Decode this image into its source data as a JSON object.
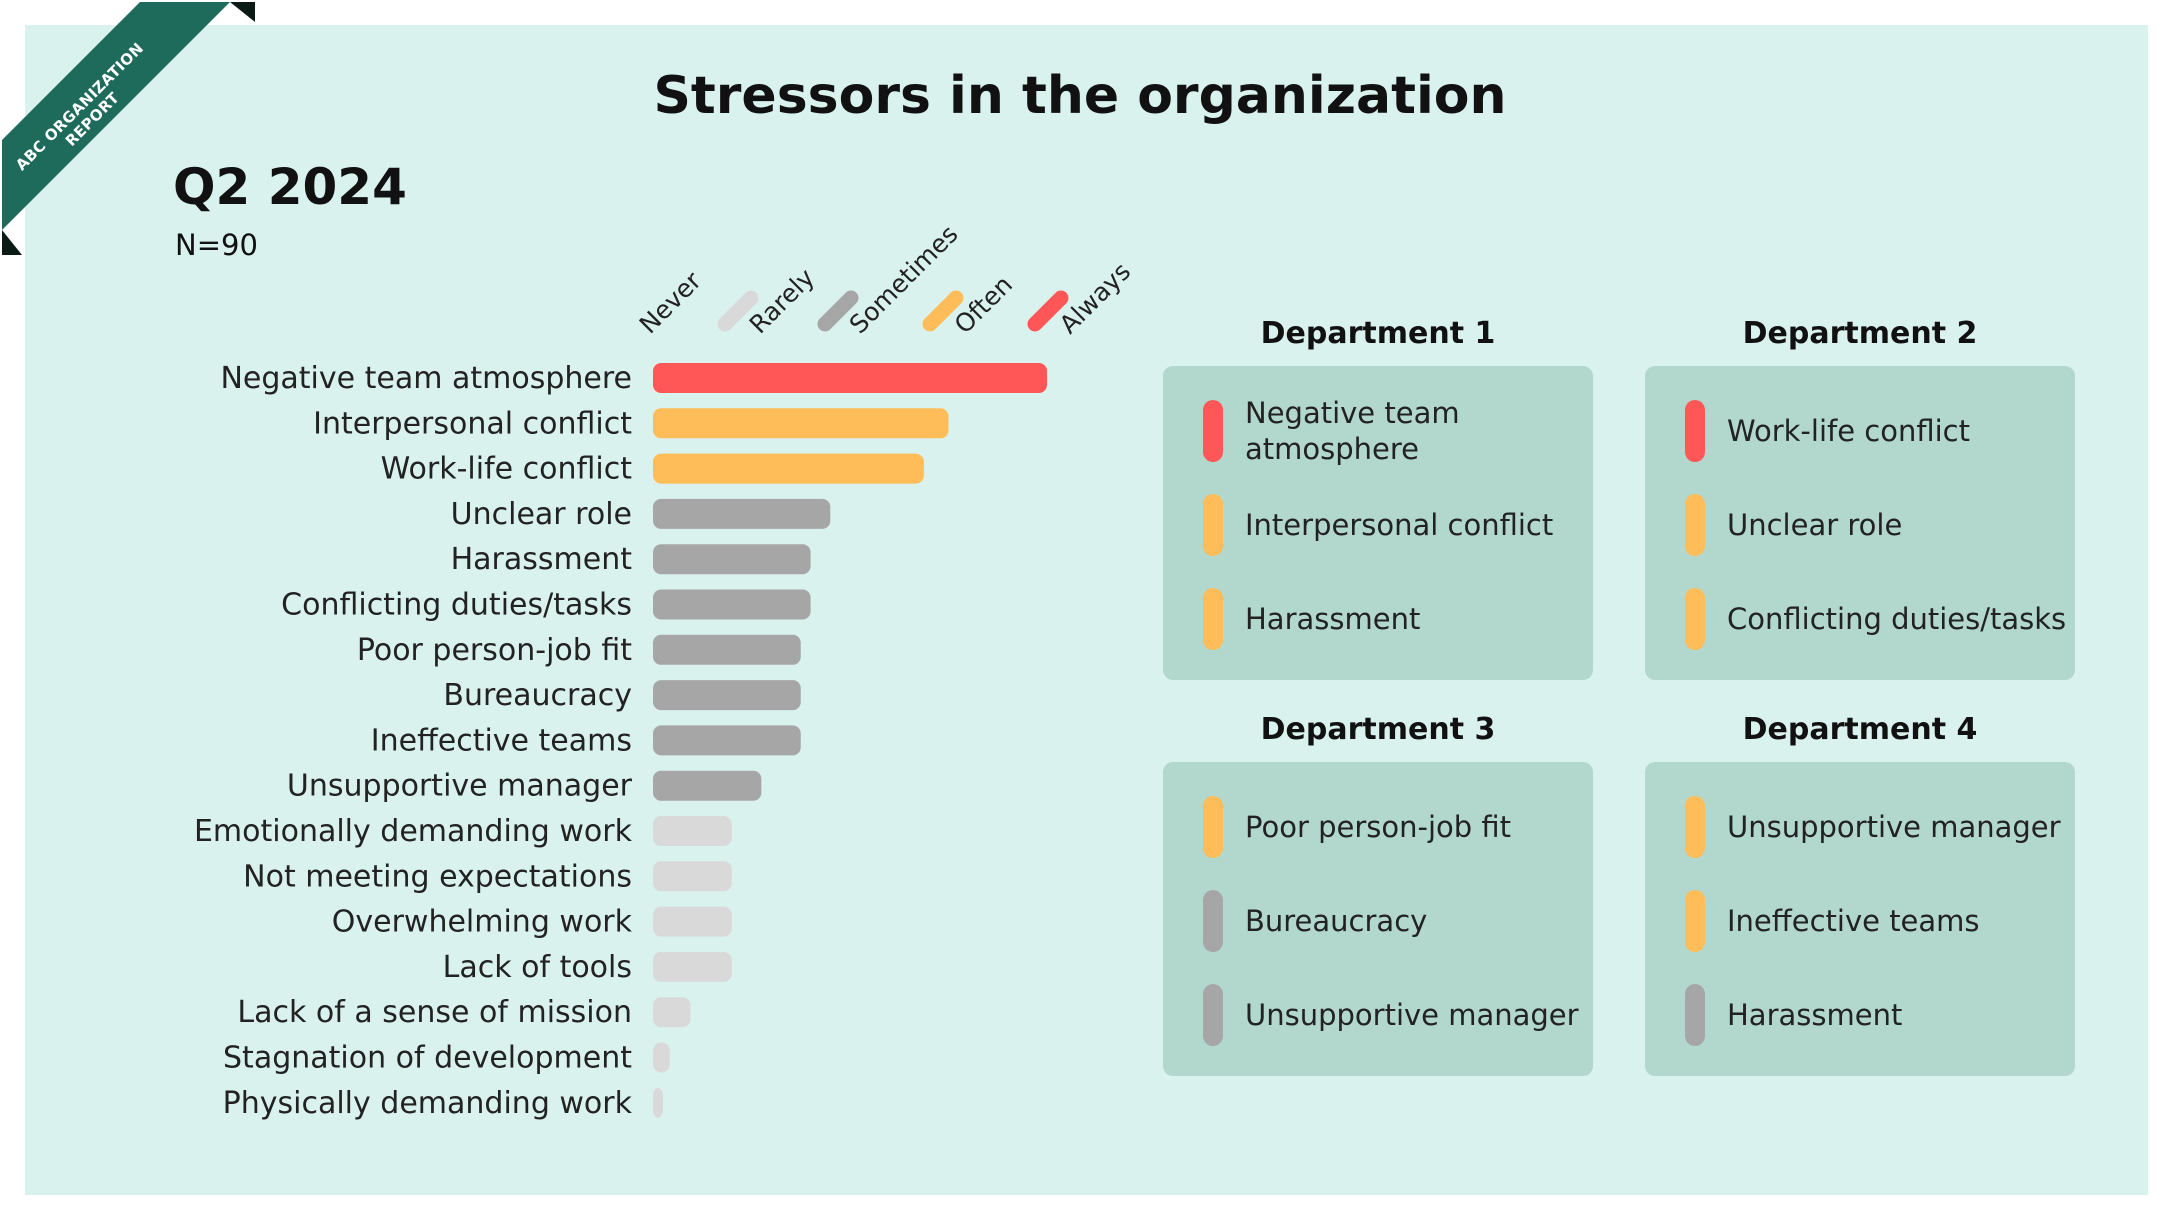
{
  "ribbon": {
    "line1": "ABC ORGANIZATION",
    "line2": "REPORT",
    "color": "#1e6b5c"
  },
  "title": "Stressors in the organization",
  "period": "Q2 2024",
  "sample": "N=90",
  "colors": {
    "background": "#daf2ee",
    "box": "#b2d8cd",
    "never": "#d9d9d9",
    "rarely": "#a6a6a6",
    "sometimes": "#ffbd59",
    "often": "#ff5757"
  },
  "chart_data": {
    "type": "bar",
    "orientation": "horizontal",
    "legend_scale": [
      {
        "label": "Never"
      },
      {
        "label": "Rarely",
        "color": "#d9d9d9"
      },
      {
        "label": "Sometimes",
        "color": "#a6a6a6"
      },
      {
        "label": "Often",
        "color": "#ffbd59"
      },
      {
        "label": "Always",
        "color": "#ff5757"
      }
    ],
    "categories": [
      "Negative team atmosphere",
      "Interpersonal conflict",
      "Work-life conflict",
      "Unclear role",
      "Harassment",
      "Conflicting duties/tasks",
      "Poor person-job fit",
      "Bureaucracy",
      "Ineffective teams",
      "Unsupportive manager",
      "Emotionally demanding work",
      "Not meeting expectations",
      "Overwhelming work",
      "Lack of tools",
      "Lack of a sense of mission",
      "Stagnation of development",
      "Physically demanding work"
    ],
    "values": [
      4.0,
      3.0,
      2.75,
      1.8,
      1.6,
      1.6,
      1.5,
      1.5,
      1.5,
      1.1,
      0.8,
      0.8,
      0.8,
      0.8,
      0.38,
      0.17,
      0.1
    ],
    "levels": [
      "always",
      "often",
      "often",
      "rarely",
      "rarely",
      "rarely",
      "rarely",
      "rarely",
      "rarely",
      "rarely",
      "never",
      "never",
      "never",
      "never",
      "never",
      "never",
      "never"
    ],
    "xlim": [
      0,
      4
    ]
  },
  "departments": [
    {
      "name": "Department 1",
      "items": [
        {
          "label": "Negative team atmosphere",
          "color": "#ff5757"
        },
        {
          "label": "Interpersonal conflict",
          "color": "#ffbd59"
        },
        {
          "label": "Harassment",
          "color": "#ffbd59"
        }
      ]
    },
    {
      "name": "Department 2",
      "items": [
        {
          "label": "Work-life conflict",
          "color": "#ff5757"
        },
        {
          "label": "Unclear role",
          "color": "#ffbd59"
        },
        {
          "label": "Conflicting duties/tasks",
          "color": "#ffbd59"
        }
      ]
    },
    {
      "name": "Department 3",
      "items": [
        {
          "label": "Poor person-job fit",
          "color": "#ffbd59"
        },
        {
          "label": "Bureaucracy",
          "color": "#a6a6a6"
        },
        {
          "label": "Unsupportive manager",
          "color": "#a6a6a6"
        }
      ]
    },
    {
      "name": "Department 4",
      "items": [
        {
          "label": "Unsupportive manager",
          "color": "#ffbd59"
        },
        {
          "label": "Ineffective teams",
          "color": "#ffbd59"
        },
        {
          "label": "Harassment",
          "color": "#a6a6a6"
        }
      ]
    }
  ]
}
